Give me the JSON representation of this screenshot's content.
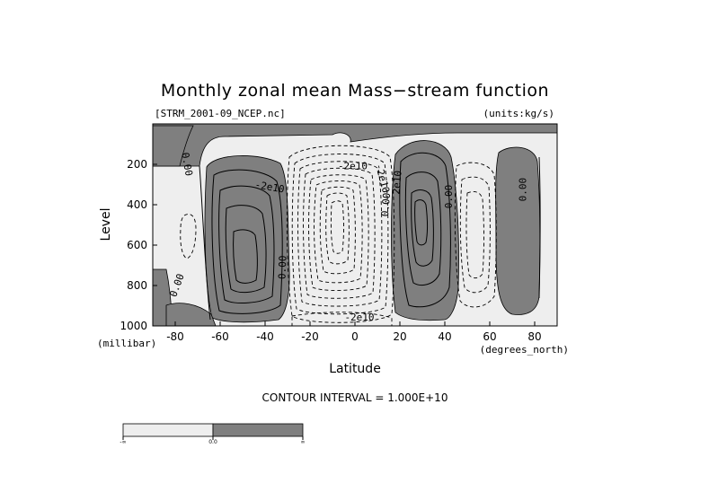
{
  "chart_data": {
    "type": "contour",
    "title": "Monthly zonal mean Mass−stream function",
    "file_label": "[STRM_2001-09_NCEP.nc]",
    "units_label": "(units:kg/s)",
    "xlabel": "Latitude",
    "x_unit": "(degrees_north)",
    "ylabel": "Level",
    "y_unit": "(millibar)",
    "xlim": [
      -90,
      90
    ],
    "ylim": [
      1000,
      0
    ],
    "x_ticks": [
      {
        "value": -80,
        "label": "-80"
      },
      {
        "value": -60,
        "label": "-60"
      },
      {
        "value": -40,
        "label": "-40"
      },
      {
        "value": -20,
        "label": "-20"
      },
      {
        "value": 0,
        "label": "0"
      },
      {
        "value": 20,
        "label": "20"
      },
      {
        "value": 40,
        "label": "40"
      },
      {
        "value": 60,
        "label": "60"
      },
      {
        "value": 80,
        "label": "80"
      }
    ],
    "y_ticks": [
      {
        "value": 200,
        "label": "200"
      },
      {
        "value": 400,
        "label": "400"
      },
      {
        "value": 600,
        "label": "600"
      },
      {
        "value": 800,
        "label": "800"
      },
      {
        "value": 1000,
        "label": "1000"
      }
    ],
    "contour_interval": "CONTOUR INTERVAL = 1.000E+10",
    "contour_labels": [
      {
        "text": "0.00",
        "x": -75,
        "y": 200,
        "rotate": 80
      },
      {
        "text": "-2e10",
        "x": -38,
        "y": 315,
        "rotate": 10
      },
      {
        "text": "0.00",
        "x": -32,
        "y": 710,
        "rotate": -88
      },
      {
        "text": "0.00",
        "x": -79,
        "y": 800,
        "rotate": -70
      },
      {
        "text": "-2e10",
        "x": -1,
        "y": 210,
        "rotate": 0
      },
      {
        "text": "-2e10",
        "x": 12,
        "y": 270,
        "rotate": 75
      },
      {
        "text": "0.00",
        "x": 14,
        "y": 400,
        "rotate": -85
      },
      {
        "text": "2e10",
        "x": 19,
        "y": 290,
        "rotate": -85
      },
      {
        "text": "0.00",
        "x": 42,
        "y": 360,
        "rotate": -90
      },
      {
        "text": "0.00",
        "x": 75,
        "y": 325,
        "rotate": -90
      },
      {
        "text": "-2e10",
        "x": 2,
        "y": 960,
        "rotate": 0
      }
    ],
    "shade_legend": {
      "labels": [
        "-∞",
        "0.0",
        "∞"
      ],
      "colors": [
        "#eeeeee",
        "#7f7f7f"
      ]
    }
  }
}
